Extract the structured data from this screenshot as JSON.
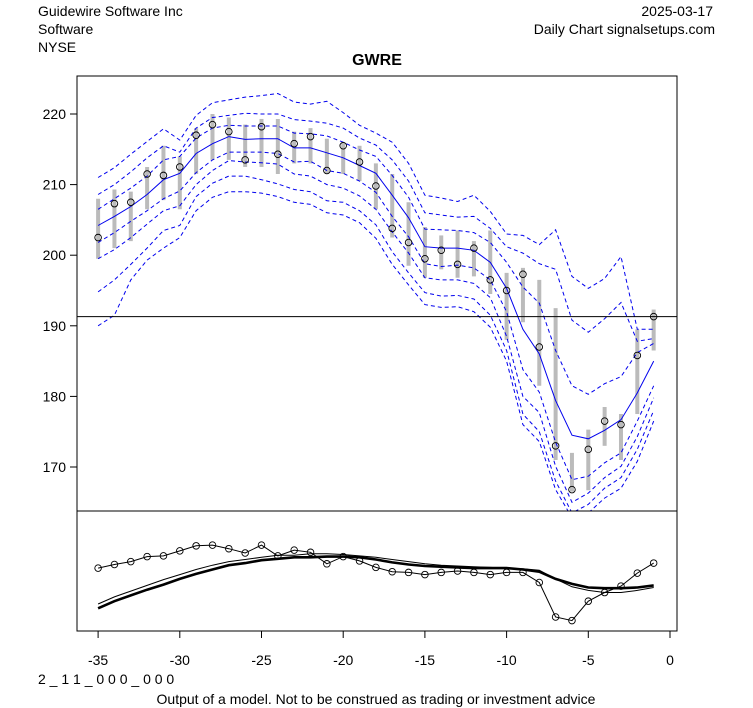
{
  "header": {
    "company": "Guidewire Software Inc",
    "sector": "Software",
    "exchange": "NYSE",
    "date": "2025-03-17",
    "source": "Daily Chart signalsetups.com"
  },
  "footer": {
    "code": "2 _ 1 1 _ 0 0 0 _ 0 0 0",
    "disclaimer": "Output of a model. Not to be construed as trading or investment advice"
  },
  "colors": {
    "bands": "#0000ee",
    "bars": "#bbbbbb",
    "axis": "#000000"
  },
  "chart_data": {
    "type": "line",
    "title": "GWRE",
    "xlabel": "",
    "ylabel": "",
    "xlim": [
      -36.3,
      0.4
    ],
    "ylim": [
      163.5,
      225
    ],
    "x_ticks": [
      -35,
      -30,
      -25,
      -20,
      -15,
      -10,
      -5,
      0
    ],
    "x_tick_labels": [
      "-35",
      "-30",
      "-25",
      "-20",
      "-15",
      "-10",
      "-5",
      "0"
    ],
    "y_ticks": [
      170,
      180,
      190,
      200,
      210,
      220
    ],
    "y_tick_labels": [
      "170",
      "180",
      "190",
      "200",
      "210",
      "220"
    ],
    "reference_line": 191.3,
    "x": [
      -35,
      -34,
      -33,
      -32,
      -31,
      -30,
      -29,
      -28,
      -27,
      -26,
      -25,
      -24,
      -23,
      -22,
      -21,
      -20,
      -19,
      -18,
      -17,
      -16,
      -15,
      -14,
      -13,
      -12,
      -11,
      -10,
      -9,
      -8,
      -7,
      -6,
      -5,
      -4,
      -3,
      -2,
      -1
    ],
    "close": [
      202.5,
      207.3,
      207.5,
      211.5,
      211.3,
      212.5,
      217.0,
      218.5,
      217.5,
      213.5,
      218.2,
      214.3,
      215.8,
      216.8,
      212.0,
      215.5,
      213.2,
      209.8,
      203.8,
      201.8,
      199.5,
      200.7,
      198.7,
      201.0,
      196.5,
      195.0,
      197.3,
      187.0,
      173.0,
      166.8,
      172.5,
      176.5,
      176.0,
      185.8,
      191.3
    ],
    "high": [
      208.0,
      209.3,
      209.0,
      212.5,
      215.5,
      214.0,
      218.0,
      220.0,
      219.5,
      218.5,
      219.3,
      219.3,
      217.5,
      218.0,
      216.5,
      216.0,
      215.5,
      213.0,
      211.5,
      207.5,
      204.0,
      202.8,
      203.5,
      202.0,
      203.5,
      197.5,
      198.2,
      196.5,
      192.5,
      172.0,
      175.3,
      178.5,
      177.5,
      189.5,
      192.3
    ],
    "low": [
      199.5,
      201.0,
      202.0,
      206.5,
      207.8,
      206.5,
      211.5,
      213.5,
      213.5,
      212.5,
      212.5,
      211.5,
      213.0,
      213.0,
      211.5,
      211.5,
      210.5,
      206.5,
      202.5,
      198.5,
      196.8,
      198.0,
      196.8,
      197.0,
      194.5,
      188.0,
      190.5,
      181.5,
      171.0,
      166.5,
      166.7,
      173.0,
      171.0,
      177.5,
      186.5
    ],
    "series": [
      {
        "name": "mid",
        "style": "solid",
        "values": [
          204.2,
          205.5,
          206.9,
          208.6,
          210.7,
          211.6,
          214.4,
          215.8,
          216.8,
          216.4,
          216.5,
          216.5,
          215.2,
          215.2,
          214.5,
          213.8,
          212.7,
          211.6,
          208.5,
          205.3,
          201.2,
          201.0,
          201.0,
          200.7,
          199.0,
          195.3,
          189.5,
          186.0,
          179.4,
          174.5,
          174.0,
          175.2,
          176.7,
          180.5,
          185.0
        ]
      },
      {
        "name": "upper1",
        "style": "dashed",
        "values": [
          206.5,
          208.0,
          209.5,
          211.2,
          213.5,
          214.0,
          216.6,
          218.0,
          218.4,
          218.3,
          218.3,
          218.3,
          217.3,
          217.2,
          216.9,
          216.0,
          214.9,
          214.0,
          211.3,
          208.2,
          203.7,
          203.6,
          203.5,
          203.2,
          201.8,
          199.0,
          195.5,
          193.2,
          186.5,
          181.5,
          180.3,
          181.8,
          182.8,
          186.2,
          187.5
        ]
      },
      {
        "name": "upper2",
        "style": "dashed",
        "values": [
          208.6,
          210.0,
          211.8,
          213.8,
          215.5,
          214.6,
          218.0,
          219.5,
          219.8,
          220.1,
          220.0,
          220.0,
          219.2,
          219.0,
          218.7,
          218.0,
          216.6,
          215.6,
          213.5,
          210.5,
          206.0,
          205.7,
          205.4,
          205.5,
          203.8,
          201.2,
          200.3,
          198.8,
          198.0,
          190.8,
          189.1,
          191.0,
          193.3,
          187.8,
          188.2
        ]
      },
      {
        "name": "upper3",
        "style": "dashed",
        "values": [
          211.0,
          212.4,
          214.3,
          216.1,
          217.9,
          216.3,
          219.8,
          221.6,
          222.0,
          222.4,
          222.6,
          222.9,
          221.7,
          221.4,
          221.8,
          220.2,
          218.4,
          217.3,
          216.0,
          213.0,
          208.5,
          208.1,
          207.6,
          208.5,
          206.2,
          203.0,
          202.8,
          201.5,
          203.6,
          197.0,
          195.3,
          196.7,
          199.8,
          189.5,
          189.5
        ]
      },
      {
        "name": "lower1",
        "style": "dashed",
        "values": [
          201.8,
          203.2,
          204.8,
          206.3,
          208.0,
          209.1,
          211.7,
          213.5,
          214.6,
          214.6,
          214.6,
          214.4,
          213.2,
          213.3,
          212.0,
          211.6,
          210.5,
          208.9,
          205.5,
          202.6,
          198.8,
          198.4,
          198.6,
          198.2,
          196.5,
          192.0,
          183.8,
          180.6,
          173.5,
          168.2,
          168.7,
          170.6,
          172.0,
          176.5,
          181.5
        ]
      },
      {
        "name": "lower2",
        "style": "dashed",
        "values": [
          199.5,
          200.8,
          202.5,
          204.4,
          206.3,
          207.0,
          210.0,
          212.0,
          213.4,
          213.2,
          213.1,
          212.9,
          211.5,
          211.2,
          210.0,
          209.5,
          208.4,
          206.5,
          203.3,
          200.3,
          196.8,
          196.5,
          196.5,
          196.0,
          194.0,
          188.5,
          180.0,
          177.7,
          170.1,
          165.0,
          166.3,
          168.5,
          170.1,
          174.3,
          179.8
        ]
      },
      {
        "name": "lower3",
        "style": "dashed",
        "values": [
          194.8,
          196.5,
          198.7,
          201.0,
          203.5,
          204.2,
          208.3,
          210.2,
          211.2,
          211.2,
          210.7,
          210.1,
          209.3,
          209.0,
          207.7,
          207.5,
          206.3,
          204.3,
          200.5,
          197.5,
          194.7,
          194.2,
          194.3,
          193.8,
          191.5,
          186.5,
          177.5,
          175.0,
          168.0,
          163.5,
          164.7,
          167.0,
          168.5,
          172.5,
          178.0
        ]
      },
      {
        "name": "lower4",
        "style": "dashed",
        "values": [
          190.0,
          191.5,
          196.5,
          199.3,
          201.0,
          202.5,
          206.3,
          208.2,
          209.0,
          209.0,
          208.8,
          208.3,
          207.5,
          207.2,
          206.0,
          205.7,
          204.6,
          202.4,
          198.7,
          195.8,
          193.0,
          192.6,
          192.7,
          192.0,
          189.8,
          185.0,
          176.0,
          173.6,
          166.8,
          162.8,
          163.5,
          165.6,
          167.0,
          170.8,
          176.5
        ]
      }
    ],
    "lower_panel": {
      "type": "line",
      "note": "indicator panel, unitless (0 = bottom, 100 = top)",
      "oscillator": [
        40,
        45,
        49,
        56,
        57,
        64,
        71,
        72,
        67,
        61,
        72,
        57,
        65,
        62,
        46,
        56,
        50,
        41,
        35,
        34,
        31,
        34,
        36,
        34,
        31,
        34,
        34,
        20,
        -28,
        -33,
        -6,
        6,
        15,
        33,
        47
      ],
      "thin_line": [
        -10,
        0,
        8,
        16,
        24,
        31,
        38,
        44,
        49,
        52,
        55,
        58,
        58,
        60,
        60,
        59,
        57,
        55,
        52,
        49,
        46,
        44,
        43,
        42,
        41,
        40,
        39,
        37,
        25,
        14,
        9,
        6,
        6,
        9,
        13
      ],
      "thick_line": [
        -16,
        -6,
        2,
        10,
        17,
        25,
        32,
        38,
        44,
        47,
        51,
        53,
        55,
        55,
        56,
        56,
        55,
        52,
        48,
        45,
        43,
        42,
        41,
        40,
        40,
        40,
        38,
        35,
        25,
        18,
        13,
        12,
        12,
        13,
        16
      ]
    }
  }
}
